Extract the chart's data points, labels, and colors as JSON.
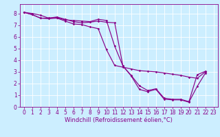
{
  "xlabel": "Windchill (Refroidissement éolien,°C)",
  "bg_color": "#cceeff",
  "line_color": "#880088",
  "grid_color": "#ffffff",
  "xlim": [
    -0.5,
    23.5
  ],
  "ylim": [
    0,
    8.8
  ],
  "xticks": [
    0,
    1,
    2,
    3,
    4,
    5,
    6,
    7,
    8,
    9,
    10,
    11,
    12,
    13,
    14,
    15,
    16,
    17,
    18,
    19,
    20,
    21,
    22,
    23
  ],
  "yticks": [
    0,
    1,
    2,
    3,
    4,
    5,
    6,
    7,
    8
  ],
  "line1_x": [
    0,
    1,
    2,
    3,
    4,
    5,
    6,
    7,
    8,
    9,
    10,
    11,
    12,
    13,
    14,
    15,
    16,
    17,
    18,
    19,
    20,
    21,
    22
  ],
  "line1_y": [
    8.1,
    8.0,
    7.85,
    7.6,
    7.65,
    7.45,
    7.4,
    7.35,
    7.3,
    7.5,
    7.4,
    5.2,
    3.5,
    2.7,
    1.8,
    1.4,
    1.55,
    0.75,
    0.65,
    0.65,
    0.45,
    2.75,
    3.05
  ],
  "line2_x": [
    0,
    1,
    2,
    3,
    4,
    5,
    6,
    7,
    8,
    9,
    10,
    11,
    12,
    13,
    14,
    15,
    16,
    17,
    18,
    19,
    20,
    21,
    22
  ],
  "line2_y": [
    8.1,
    7.9,
    7.6,
    7.6,
    7.7,
    7.5,
    7.3,
    7.2,
    7.25,
    7.35,
    7.25,
    7.2,
    3.5,
    2.65,
    1.5,
    1.3,
    1.5,
    0.65,
    0.6,
    0.6,
    0.4,
    1.75,
    2.9
  ],
  "line3_x": [
    0,
    1,
    2,
    3,
    4,
    5,
    6,
    7,
    8,
    9,
    10,
    11,
    12,
    13,
    14,
    15,
    16,
    17,
    18,
    19,
    20,
    21,
    22
  ],
  "line3_y": [
    8.1,
    7.9,
    7.6,
    7.55,
    7.6,
    7.35,
    7.1,
    7.05,
    6.85,
    6.7,
    4.9,
    3.55,
    3.4,
    3.25,
    3.1,
    3.05,
    3.0,
    2.9,
    2.8,
    2.7,
    2.55,
    2.45,
    3.0
  ],
  "tick_fontsize": 5.5,
  "xlabel_fontsize": 6.0
}
